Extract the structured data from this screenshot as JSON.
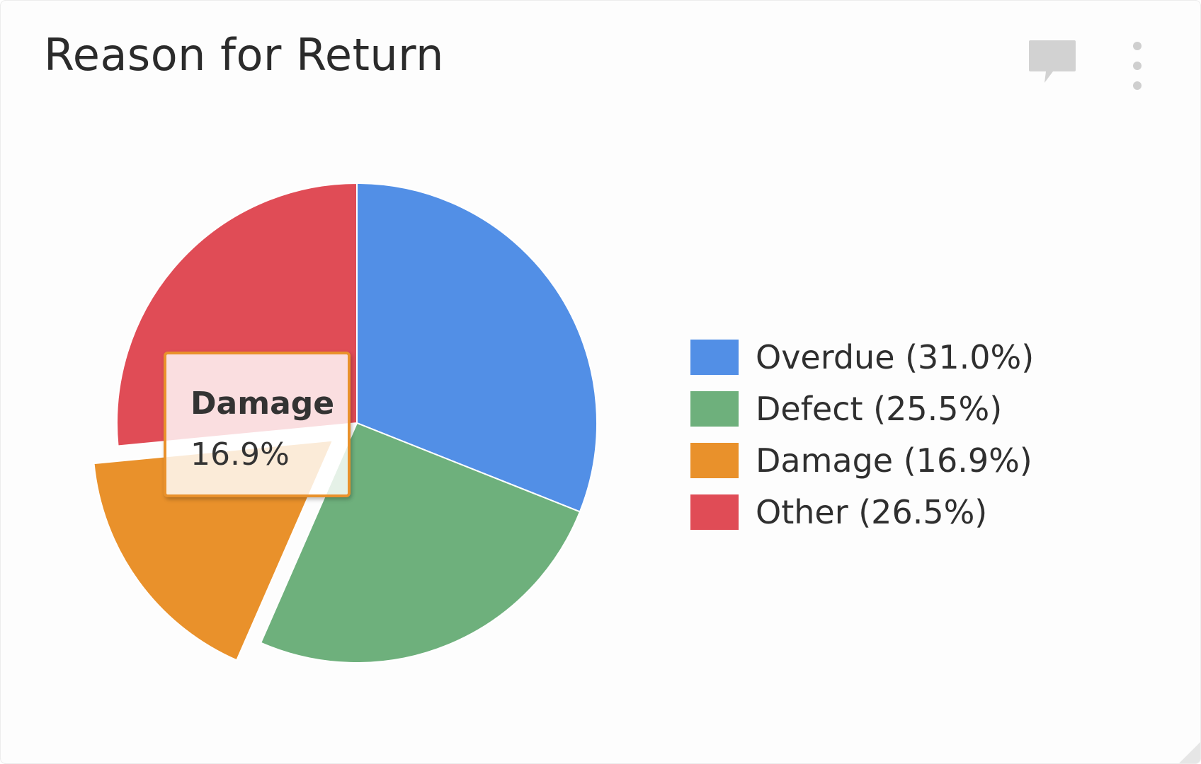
{
  "card": {
    "title": "Reason for Return",
    "icons": {
      "comment": "comment-icon",
      "menu": "more-vertical-icon"
    }
  },
  "chart_data": {
    "type": "pie",
    "title": "Reason for Return",
    "slices": [
      {
        "label": "Overdue",
        "value": 31.0,
        "legend": "Overdue (31.0%)",
        "color": "#528fe6"
      },
      {
        "label": "Defect",
        "value": 25.5,
        "legend": "Defect (25.5%)",
        "color": "#6eb07c"
      },
      {
        "label": "Damage",
        "value": 16.9,
        "legend": "Damage (16.9%)",
        "color": "#e9912b",
        "exploded": true
      },
      {
        "label": "Other",
        "value": 26.5,
        "legend": "Other (26.5%)",
        "color": "#e04c56"
      }
    ],
    "legend_position": "right",
    "tooltip": {
      "title": "Damage",
      "value": "16.9%",
      "color": "#e9912b"
    }
  }
}
